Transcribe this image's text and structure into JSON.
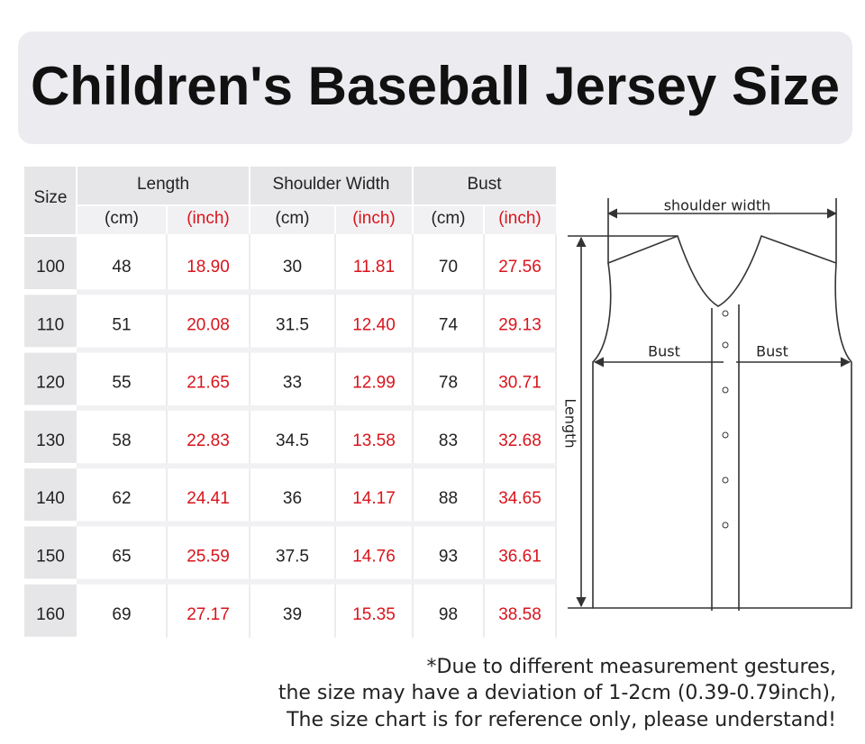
{
  "header": {
    "title": "Children's Baseball Jersey Size"
  },
  "table": {
    "size_header": "Size",
    "groups": [
      "Length",
      "Shoulder Width",
      "Bust"
    ],
    "units": [
      "(cm)",
      "(inch)",
      "(cm)",
      "(inch)",
      "(cm)",
      "(inch)"
    ],
    "rows": [
      [
        "100",
        "48",
        "18.90",
        "30",
        "11.81",
        "70",
        "27.56"
      ],
      [
        "110",
        "51",
        "20.08",
        "31.5",
        "12.40",
        "74",
        "29.13"
      ],
      [
        "120",
        "55",
        "21.65",
        "33",
        "12.99",
        "78",
        "30.71"
      ],
      [
        "130",
        "58",
        "22.83",
        "34.5",
        "13.58",
        "83",
        "32.68"
      ],
      [
        "140",
        "62",
        "24.41",
        "36",
        "14.17",
        "88",
        "34.65"
      ],
      [
        "150",
        "65",
        "25.59",
        "37.5",
        "14.76",
        "93",
        "36.61"
      ],
      [
        "160",
        "69",
        "27.17",
        "39",
        "15.35",
        "98",
        "38.58"
      ]
    ]
  },
  "diagram": {
    "shoulder_label": "shoulder width",
    "bust_left": "Bust",
    "bust_right": "Bust",
    "length_label": "Length"
  },
  "footnote": [
    "*Due to different measurement gestures,",
    "the size may have a deviation of 1-2cm (0.39-0.79inch),",
    "The size chart is for reference only, please understand!"
  ]
}
